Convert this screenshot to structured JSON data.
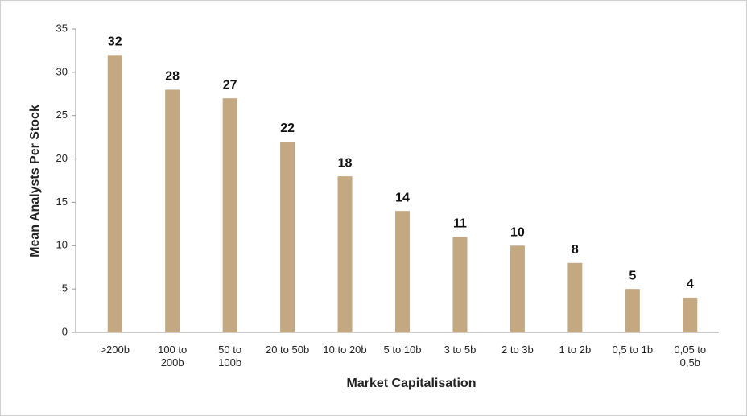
{
  "chart_data": {
    "type": "bar",
    "x_label": "Market Capitalisation",
    "y_label": "Mean Analysts Per Stock",
    "categories": [
      ">200b",
      "100 to 200b",
      "50 to 100b",
      "20 to 50b",
      "10 to 20b",
      "5 to 10b",
      "3 to 5b",
      "2 to 3b",
      "1 to 2b",
      "0,5 to 1b",
      "0,05 to 0,5b"
    ],
    "values": [
      32,
      28,
      27,
      22,
      18,
      14,
      11,
      10,
      8,
      5,
      4
    ],
    "color": "#c4a882",
    "ylim": [
      0,
      35
    ],
    "yticks": [
      0,
      5,
      10,
      15,
      20,
      25,
      30,
      35
    ],
    "grid": false
  }
}
